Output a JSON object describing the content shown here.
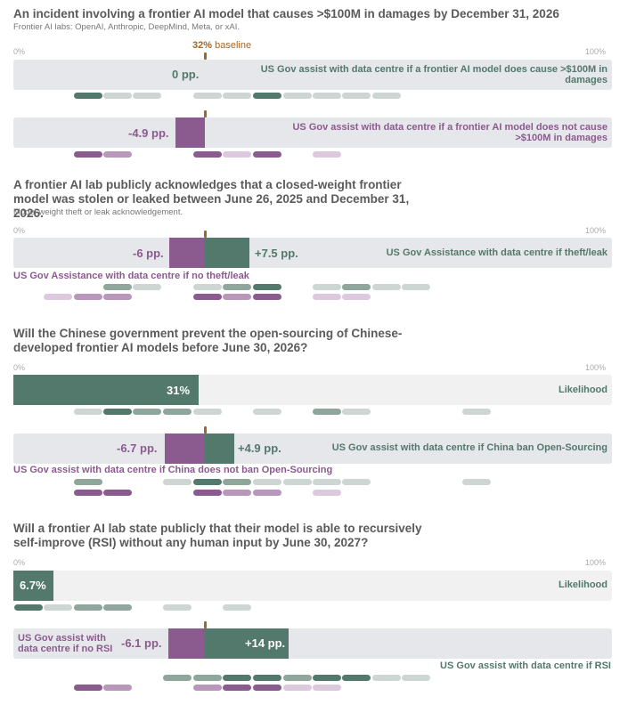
{
  "chart_data": [
    {
      "type": "bar",
      "title": "An incident involving a frontier AI model that causes >$100M in damages by December 31, 2026",
      "subtitle": "Frontier AI labs: OpenAI, Anthropic, DeepMind, Meta, or xAI.",
      "axis_min_label": "0%",
      "axis_max_label": "100%",
      "baseline": {
        "value": 32,
        "value_label": "32%",
        "label": "baseline"
      },
      "series": [
        {
          "name": "US Gov assist with data centre if a frontier AI model does cause >$100M in damages",
          "change": 0,
          "change_label": "0 pp.",
          "color": "#53786c"
        },
        {
          "name": "US Gov assist with data centre if a frontier AI model does not cause >$100M in damages",
          "change": -4.9,
          "change_label": "-4.9 pp.",
          "color": "#8b5a8f"
        }
      ]
    },
    {
      "type": "bar",
      "title": "A frontier AI lab publicly acknowledges that a closed-weight frontier model was stolen or leaked between June 26, 2025 and December 31, 2026.",
      "subtitle": "Model weight theft or leak acknowledgement.",
      "axis_min_label": "0%",
      "axis_max_label": "100%",
      "baseline": {
        "value": 32
      },
      "series": [
        {
          "name": "US Gov Assistance with data centre if theft/leak",
          "change": 7.5,
          "change_label": "+7.5 pp.",
          "color": "#53786c"
        },
        {
          "name": "US Gov Assistance with data centre if no theft/leak",
          "change": -6,
          "change_label": "-6 pp.",
          "color": "#8b5a8f"
        }
      ]
    },
    {
      "type": "bar",
      "title": "Will the Chinese government prevent the open-sourcing of Chinese-developed frontier AI models before June 30, 2026?",
      "axis_min_label": "0%",
      "axis_max_label": "100%",
      "likelihood": {
        "name": "Likelihood",
        "value": 31,
        "value_label": "31%"
      },
      "baseline": {
        "value": 32
      },
      "series": [
        {
          "name": "US Gov assist with data centre if China ban Open-Sourcing",
          "change": 4.9,
          "change_label": "+4.9 pp.",
          "color": "#53786c"
        },
        {
          "name": "US Gov assist with data centre if China does not ban Open-Sourcing",
          "change": -6.7,
          "change_label": "-6.7 pp.",
          "color": "#8b5a8f"
        }
      ]
    },
    {
      "type": "bar",
      "title": "Will a frontier AI lab state publicly that their model is able to recursively self-improve (RSI) without any human input by June 30, 2027?",
      "axis_min_label": "0%",
      "axis_max_label": "100%",
      "likelihood": {
        "name": "Likelihood",
        "value": 6.7,
        "value_label": "6.7%"
      },
      "baseline": {
        "value": 32
      },
      "series": [
        {
          "name": "US Gov assist with data centre if RSI",
          "change": 14,
          "change_label": "+14 pp.",
          "color": "#53786c"
        },
        {
          "name_lines": [
            "US Gov assist with",
            "data centre if no RSI"
          ],
          "change": -6.1,
          "change_label": "-6.1 pp.",
          "color": "#8b5a8f"
        }
      ]
    }
  ]
}
